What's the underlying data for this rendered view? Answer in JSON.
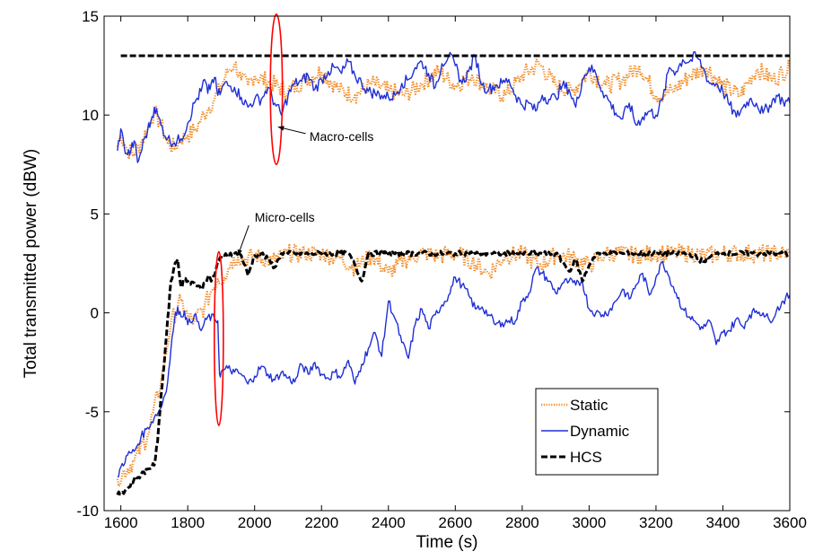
{
  "chart_data": {
    "type": "line",
    "title": "",
    "xlabel": "Time (s)",
    "ylabel": "Total transmitted power (dBW)",
    "xlim": [
      1550,
      3600
    ],
    "ylim": [
      -10,
      15
    ],
    "xticks": [
      1600,
      1800,
      2000,
      2200,
      2400,
      2600,
      2800,
      3000,
      3200,
      3400,
      3600
    ],
    "yticks": [
      -10,
      -5,
      0,
      5,
      10,
      15
    ],
    "grid": false,
    "legend_position": "lower-right",
    "annotations": [
      {
        "text": "Macro-cells",
        "ellipse_center": [
          2065,
          11.3
        ],
        "ellipse_rx": 40,
        "ellipse_ry": 3.8,
        "label_at": [
          2260,
          8.7
        ],
        "arrow_to": [
          2070,
          9.4
        ]
      },
      {
        "text": "Micro-cells",
        "ellipse_center": [
          1893,
          -1.3
        ],
        "ellipse_rx": 30,
        "ellipse_ry": 4.4,
        "label_at": [
          2090,
          4.6
        ],
        "arrow_to": [
          1950,
          2.9
        ]
      }
    ],
    "series": [
      {
        "name": "Static",
        "color": "#f28c28",
        "style": "dotted",
        "x": [
          1590,
          1600,
          1620,
          1640,
          1660,
          1680,
          1700,
          1720,
          1740,
          1760,
          1780,
          1800,
          1820,
          1840,
          1860,
          1880,
          1900,
          1920,
          1940,
          1960,
          1980,
          2000,
          2050,
          2100,
          2150,
          2200,
          2250,
          2300,
          2350,
          2400,
          2450,
          2500,
          2550,
          2600,
          2650,
          2700,
          2750,
          2800,
          2850,
          2900,
          2950,
          3000,
          3050,
          3100,
          3150,
          3200,
          3250,
          3300,
          3350,
          3400,
          3450,
          3500,
          3550,
          3600
        ],
        "y": [
          8.4,
          9.0,
          8.2,
          8.0,
          8.6,
          9.3,
          10.2,
          9.5,
          8.6,
          8.3,
          8.8,
          9.0,
          9.2,
          9.8,
          10.3,
          10.8,
          11.5,
          12.2,
          12.6,
          11.8,
          11.5,
          12.0,
          11.6,
          11.2,
          11.8,
          12.2,
          11.3,
          11.0,
          11.6,
          11.2,
          11.0,
          11.6,
          12.2,
          11.5,
          12.0,
          11.3,
          11.0,
          12.0,
          12.6,
          11.5,
          11.2,
          12.2,
          11.5,
          11.8,
          12.5,
          11.0,
          11.2,
          12.0,
          12.4,
          11.5,
          11.0,
          12.3,
          11.8,
          12.4
        ]
      },
      {
        "name": "Static",
        "color": "#f28c28",
        "style": "dotted",
        "x": [
          1590,
          1640,
          1680,
          1720,
          1750,
          1780,
          1800,
          1820,
          1850,
          1870,
          1890,
          1910,
          1930,
          1950,
          1970,
          2000,
          2050,
          2100,
          2150,
          2200,
          2250,
          2300,
          2350,
          2400,
          2450,
          2500,
          2550,
          2600,
          2650,
          2700,
          2750,
          2800,
          2850,
          2900,
          2950,
          3000,
          3050,
          3100,
          3150,
          3200,
          3250,
          3300,
          3350,
          3400,
          3450,
          3500,
          3550,
          3600
        ],
        "y": [
          -8.4,
          -7.5,
          -6.2,
          -3.5,
          -0.5,
          0.6,
          -0.2,
          -0.4,
          0.3,
          1.1,
          1.7,
          1.8,
          2.6,
          2.8,
          2.7,
          2.9,
          2.6,
          3.0,
          3.0,
          3.0,
          2.8,
          2.3,
          2.9,
          2.0,
          2.7,
          3.0,
          2.9,
          3.0,
          2.6,
          2.0,
          2.9,
          3.0,
          2.4,
          2.9,
          2.8,
          2.4,
          3.0,
          3.0,
          2.9,
          3.0,
          3.0,
          3.0,
          2.9,
          3.0,
          3.0,
          3.0,
          3.0,
          3.0
        ]
      },
      {
        "name": "Dynamic",
        "color": "#1f2fd6",
        "style": "solid",
        "x": [
          1590,
          1600,
          1610,
          1620,
          1630,
          1640,
          1650,
          1660,
          1670,
          1680,
          1690,
          1700,
          1710,
          1720,
          1740,
          1760,
          1780,
          1800,
          1820,
          1840,
          1850,
          1860,
          1870,
          1880,
          1890,
          1900,
          1910,
          1920,
          1940,
          1960,
          1980,
          2000,
          2020,
          2040,
          2060,
          2080,
          2100,
          2120,
          2140,
          2160,
          2180,
          2200,
          2220,
          2240,
          2260,
          2280,
          2300,
          2320,
          2340,
          2360,
          2380,
          2400,
          2420,
          2440,
          2460,
          2480,
          2500,
          2520,
          2540,
          2560,
          2580,
          2600,
          2620,
          2640,
          2660,
          2680,
          2700,
          2720,
          2740,
          2760,
          2780,
          2800,
          2820,
          2840,
          2860,
          2880,
          2900,
          2920,
          2940,
          2960,
          2980,
          3000,
          3020,
          3040,
          3060,
          3080,
          3100,
          3120,
          3140,
          3160,
          3180,
          3200,
          3220,
          3240,
          3260,
          3280,
          3300,
          3320,
          3340,
          3360,
          3380,
          3400,
          3420,
          3440,
          3460,
          3480,
          3500,
          3520,
          3540,
          3560,
          3580,
          3600
        ],
        "y": [
          8.2,
          9.3,
          8.4,
          8.0,
          8.2,
          8.7,
          7.6,
          8.1,
          8.8,
          9.2,
          9.7,
          10.4,
          10.0,
          9.5,
          8.8,
          8.6,
          8.8,
          9.6,
          10.6,
          11.2,
          11.8,
          11.1,
          11.6,
          11.9,
          11.0,
          11.2,
          11.6,
          11.5,
          11.4,
          10.9,
          10.4,
          10.8,
          10.8,
          11.4,
          10.6,
          10.0,
          11.0,
          11.6,
          11.7,
          12.0,
          11.3,
          11.8,
          12.2,
          12.4,
          12.1,
          12.7,
          12.0,
          11.6,
          11.2,
          11.1,
          11.0,
          10.9,
          11.0,
          11.6,
          11.8,
          12.4,
          12.7,
          12.1,
          11.4,
          12.6,
          13.0,
          12.5,
          11.6,
          12.2,
          13.0,
          11.5,
          11.3,
          11.5,
          11.6,
          11.8,
          11.0,
          10.5,
          10.6,
          10.2,
          11.0,
          10.8,
          10.9,
          11.5,
          11.3,
          10.4,
          11.8,
          12.4,
          12.1,
          11.2,
          10.7,
          10.1,
          9.8,
          10.6,
          9.5,
          9.9,
          10.2,
          10.0,
          10.8,
          12.4,
          12.2,
          12.8,
          12.7,
          13.0,
          12.4,
          11.6,
          11.6,
          11.2,
          10.5,
          9.9,
          10.4,
          10.8,
          10.6,
          10.1,
          10.5,
          11.0,
          10.7,
          10.6
        ],
        "xb": [
          1590,
          1600,
          1620,
          1640,
          1660,
          1680,
          1700,
          1720,
          1740,
          1750,
          1760,
          1770,
          1780,
          1790,
          1800,
          1820,
          1840,
          1860,
          1880,
          1890,
          1895,
          1900,
          1920,
          1940,
          1960,
          1980,
          2000,
          2020,
          2040,
          2060,
          2080,
          2100,
          2120,
          2140,
          2160,
          2180,
          2200,
          2220,
          2240,
          2260,
          2280,
          2300,
          2320,
          2340,
          2360,
          2380,
          2400,
          2420,
          2440,
          2460,
          2480,
          2500,
          2520,
          2540,
          2560,
          2580,
          2600,
          2620,
          2640,
          2660,
          2680,
          2700,
          2720,
          2740,
          2760,
          2780,
          2800,
          2820,
          2840,
          2860,
          2880,
          2900,
          2920,
          2940,
          2960,
          2980,
          3000,
          3020,
          3040,
          3060,
          3080,
          3100,
          3120,
          3140,
          3160,
          3180,
          3200,
          3220,
          3240,
          3260,
          3280,
          3300,
          3320,
          3340,
          3360,
          3380,
          3400,
          3420,
          3440,
          3460,
          3480,
          3500,
          3520,
          3540,
          3560,
          3580,
          3600
        ],
        "yb": [
          -8.3,
          -7.8,
          -7.2,
          -7.0,
          -6.3,
          -5.8,
          -5.3,
          -4.8,
          -3.5,
          -1.8,
          -0.4,
          0.3,
          -0.2,
          0.1,
          -0.6,
          -0.1,
          -0.9,
          -0.2,
          -0.3,
          -0.4,
          -3.1,
          -3.0,
          -2.8,
          -3.0,
          -3.1,
          -3.6,
          -3.2,
          -2.7,
          -3.1,
          -3.4,
          -3.0,
          -3.3,
          -3.5,
          -2.6,
          -3.1,
          -2.5,
          -3.1,
          -3.3,
          -3.0,
          -3.2,
          -2.4,
          -3.6,
          -2.6,
          -1.8,
          -1.0,
          -2.2,
          0.6,
          -0.3,
          -1.5,
          -2.3,
          -0.6,
          0.2,
          -0.8,
          -0.1,
          0.4,
          0.9,
          1.8,
          1.4,
          0.9,
          0.2,
          0.3,
          -0.1,
          -0.6,
          -0.5,
          -0.4,
          -0.4,
          0.6,
          1.0,
          2.2,
          2.0,
          1.6,
          1.0,
          1.5,
          1.6,
          1.4,
          1.6,
          0.2,
          0.0,
          -0.1,
          0.1,
          0.6,
          1.2,
          0.7,
          1.4,
          2.0,
          0.9,
          1.8,
          2.6,
          1.8,
          1.0,
          0.2,
          -0.2,
          -0.5,
          -0.8,
          -0.4,
          -1.6,
          -1.0,
          -0.9,
          -0.3,
          -0.7,
          -0.1,
          0.1,
          0.0,
          -0.4,
          0.1,
          0.6,
          0.9,
          1.3
        ]
      },
      {
        "name": "HCS",
        "color": "#000000",
        "style": "dashed",
        "x": [
          1600,
          3600
        ],
        "y": [
          13.0,
          13.0
        ],
        "xb": [
          1590,
          1620,
          1640,
          1660,
          1680,
          1700,
          1710,
          1720,
          1730,
          1740,
          1750,
          1760,
          1770,
          1780,
          1790,
          1800,
          1820,
          1840,
          1860,
          1870,
          1880,
          1890,
          1900,
          1910,
          1920,
          1940,
          1960,
          1980,
          2000,
          2020,
          2040,
          2060,
          2080,
          2100,
          2200,
          2280,
          2300,
          2320,
          2340,
          2400,
          2500,
          2600,
          2700,
          2800,
          2860,
          2900,
          2920,
          2940,
          2960,
          2980,
          3000,
          3020,
          3100,
          3200,
          3300,
          3340,
          3360,
          3380,
          3400,
          3500,
          3600
        ],
        "yb": [
          -9.2,
          -8.9,
          -8.4,
          -8.2,
          -7.9,
          -7.7,
          -6.5,
          -4.2,
          -2.5,
          -0.3,
          1.6,
          2.4,
          2.7,
          1.3,
          1.7,
          1.6,
          1.5,
          1.2,
          1.8,
          1.6,
          1.9,
          2.6,
          2.8,
          2.9,
          3.0,
          3.0,
          2.9,
          1.9,
          2.9,
          3.0,
          2.7,
          2.3,
          3.0,
          3.0,
          3.0,
          3.0,
          2.4,
          1.6,
          3.0,
          3.0,
          3.0,
          3.0,
          3.0,
          3.0,
          3.0,
          3.0,
          2.6,
          2.1,
          2.7,
          1.6,
          2.4,
          3.0,
          3.0,
          3.0,
          3.0,
          2.6,
          2.8,
          3.0,
          3.0,
          3.0,
          3.0
        ]
      }
    ]
  },
  "legend": {
    "items": [
      {
        "label": "Static",
        "color": "#f28c28",
        "style": "dotted"
      },
      {
        "label": "Dynamic",
        "color": "#1f2fd6",
        "style": "solid"
      },
      {
        "label": "HCS",
        "color": "#000000",
        "style": "dashed"
      }
    ]
  }
}
